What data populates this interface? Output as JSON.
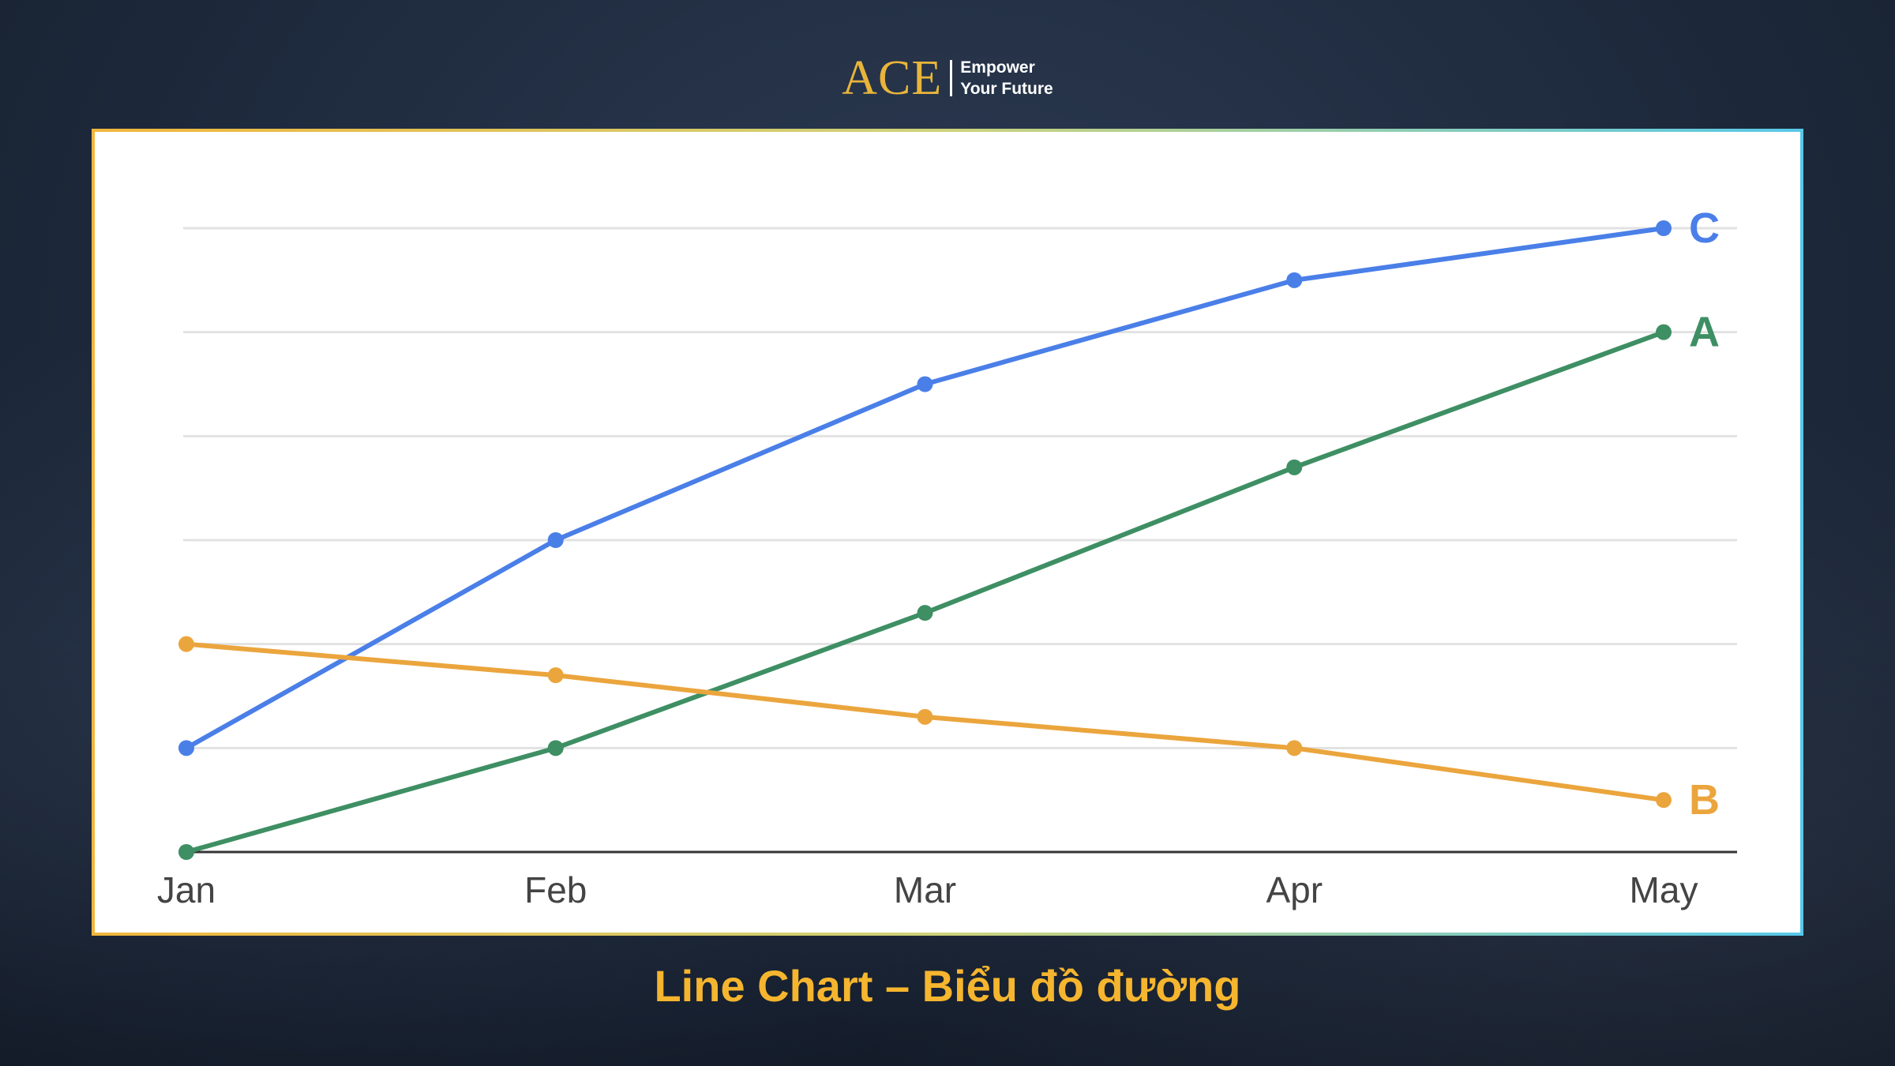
{
  "logo": {
    "mark": "ACE",
    "tagline_line1": "Empower",
    "tagline_line2": "Your Future"
  },
  "caption": "Line Chart – Biểu đồ đường",
  "chart_data": {
    "type": "line",
    "title": "",
    "xlabel": "",
    "ylabel": "",
    "categories": [
      "Jan",
      "Feb",
      "Mar",
      "Apr",
      "May"
    ],
    "ylim": [
      0,
      6
    ],
    "gridlines": [
      0,
      1,
      2,
      3,
      4,
      5,
      6
    ],
    "grid": true,
    "legend": "end-of-line labels",
    "series": [
      {
        "name": "C",
        "color": "#4a7fe8",
        "values": [
          1.0,
          3.0,
          4.5,
          5.5,
          6.0
        ]
      },
      {
        "name": "A",
        "color": "#3e8f63",
        "values": [
          0.0,
          1.0,
          2.3,
          3.7,
          5.0
        ]
      },
      {
        "name": "B",
        "color": "#eba53d",
        "values": [
          2.0,
          1.7,
          1.3,
          1.0,
          0.5
        ]
      }
    ]
  }
}
